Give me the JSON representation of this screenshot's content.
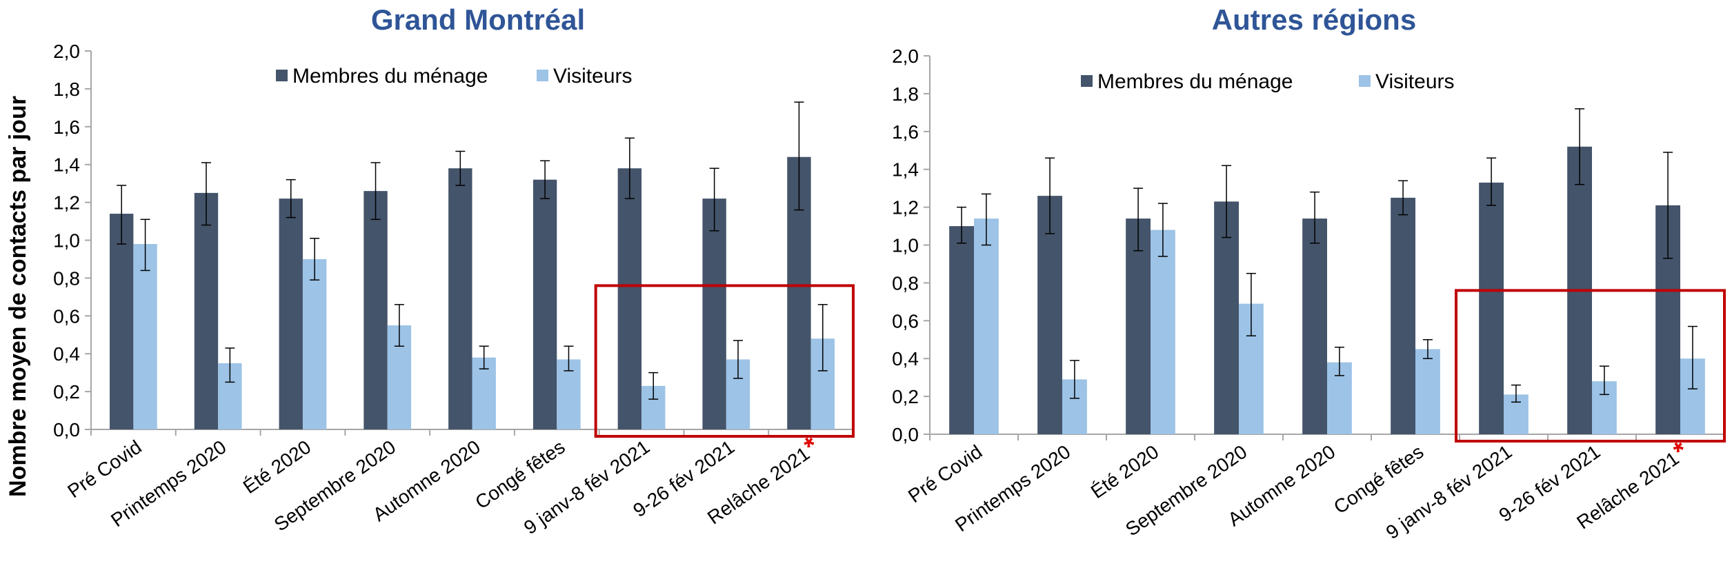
{
  "colors": {
    "household": "#44546A",
    "visitors": "#9DC3E6",
    "title": "#2F5597",
    "highlight_box": "#C00000",
    "star": "#E00000",
    "axis": "#A6A6A6",
    "error_bar": "#000000"
  },
  "shared": {
    "ylabel": "Nombre moyen de contacts par jour",
    "star_symbol": "*"
  },
  "chart_data": [
    {
      "type": "bar",
      "title": "Grand Montréal",
      "ylabel": "Nombre moyen de contacts par jour",
      "ylim": [
        0,
        2.0
      ],
      "yticks": [
        "0,0",
        "0,2",
        "0,4",
        "0,6",
        "0,8",
        "1,0",
        "1,2",
        "1,4",
        "1,6",
        "1,8",
        "2,0"
      ],
      "grid": false,
      "legend_position": "top",
      "categories": [
        "Pré Covid",
        "Printemps 2020",
        "Été 2020",
        "Septembre 2020",
        "Automne 2020",
        "Congé fêtes",
        "9 janv-8 fév 2021",
        "9-26 fév 2021",
        "Relâche 2021"
      ],
      "series": [
        {
          "name": "Membres du ménage",
          "values": [
            1.14,
            1.25,
            1.22,
            1.26,
            1.38,
            1.32,
            1.38,
            1.22,
            1.44
          ],
          "err_low": [
            0.98,
            1.08,
            1.12,
            1.11,
            1.29,
            1.22,
            1.22,
            1.05,
            1.16
          ],
          "err_high": [
            1.29,
            1.41,
            1.32,
            1.41,
            1.47,
            1.42,
            1.54,
            1.38,
            1.73
          ]
        },
        {
          "name": "Visiteurs",
          "values": [
            0.98,
            0.35,
            0.9,
            0.55,
            0.38,
            0.37,
            0.23,
            0.37,
            0.48
          ],
          "err_low": [
            0.84,
            0.25,
            0.79,
            0.44,
            0.32,
            0.31,
            0.16,
            0.27,
            0.31
          ],
          "err_high": [
            1.11,
            0.43,
            1.01,
            0.66,
            0.44,
            0.44,
            0.3,
            0.47,
            0.66
          ]
        }
      ],
      "highlighted_categories": [
        "9 janv-8 fév 2021",
        "9-26 fév 2021",
        "Relâche 2021"
      ],
      "starred_category": "Relâche 2021"
    },
    {
      "type": "bar",
      "title": "Autres régions",
      "ylim": [
        0,
        2.0
      ],
      "yticks": [
        "0,0",
        "0,2",
        "0,4",
        "0,6",
        "0,8",
        "1,0",
        "1,2",
        "1,4",
        "1,6",
        "1,8",
        "2,0"
      ],
      "grid": false,
      "legend_position": "top",
      "categories": [
        "Pré Covid",
        "Printemps 2020",
        "Été 2020",
        "Septembre 2020",
        "Automne 2020",
        "Congé fêtes",
        "9 janv-8 fév 2021",
        "9-26 fév 2021",
        "Relâche 2021"
      ],
      "series": [
        {
          "name": "Membres du ménage",
          "values": [
            1.1,
            1.26,
            1.14,
            1.23,
            1.14,
            1.25,
            1.33,
            1.52,
            1.21
          ],
          "err_low": [
            1.01,
            1.06,
            0.97,
            1.04,
            1.01,
            1.16,
            1.21,
            1.32,
            0.93
          ],
          "err_high": [
            1.2,
            1.46,
            1.3,
            1.42,
            1.28,
            1.34,
            1.46,
            1.72,
            1.49
          ]
        },
        {
          "name": "Visiteurs",
          "values": [
            1.14,
            0.29,
            1.08,
            0.69,
            0.38,
            0.45,
            0.21,
            0.28,
            0.4
          ],
          "err_low": [
            1.0,
            0.19,
            0.94,
            0.52,
            0.31,
            0.4,
            0.17,
            0.21,
            0.24
          ],
          "err_high": [
            1.27,
            0.39,
            1.22,
            0.85,
            0.46,
            0.5,
            0.26,
            0.36,
            0.57
          ]
        }
      ],
      "highlighted_categories": [
        "9 janv-8 fév 2021",
        "9-26 fév 2021",
        "Relâche 2021"
      ],
      "starred_category": "Relâche 2021"
    }
  ]
}
